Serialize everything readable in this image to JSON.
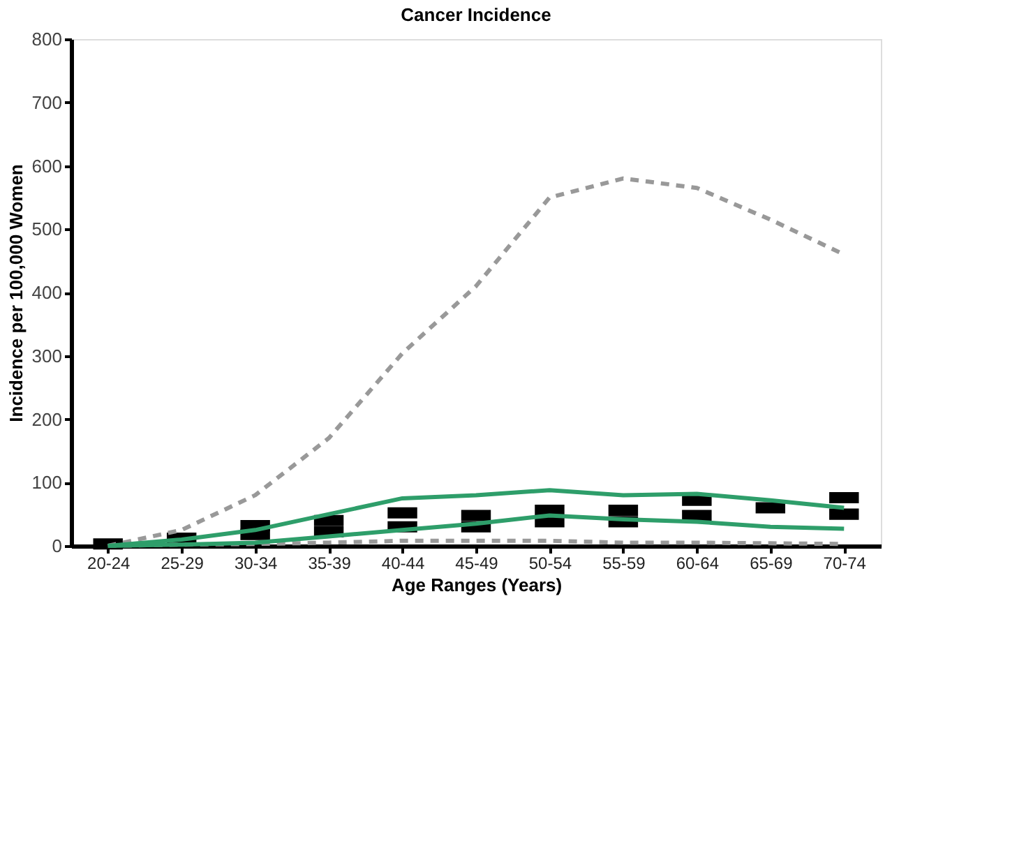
{
  "chart_data": {
    "type": "line",
    "title": "Cancer Incidence",
    "xlabel": "Age Ranges (Years)",
    "ylabel": "Incidence per 100,000 Women",
    "categories": [
      "20-24",
      "25-29",
      "30-34",
      "35-39",
      "40-44",
      "45-49",
      "50-54",
      "55-59",
      "60-64",
      "65-69",
      "70-74"
    ],
    "ylim": [
      0,
      800
    ],
    "yticks": [
      0,
      100,
      200,
      300,
      400,
      500,
      600,
      700,
      800
    ],
    "grid": false,
    "series": [
      {
        "line_style": "dashed",
        "color": "#999999",
        "values": [
          0,
          25,
          80,
          170,
          304,
          410,
          550,
          580,
          565,
          515,
          460
        ]
      },
      {
        "line_style": "dashed",
        "color": "#999999",
        "values": [
          0,
          2,
          3,
          5,
          8,
          8,
          8,
          5,
          5,
          4,
          3
        ]
      },
      {
        "line_style": "solid",
        "color": "#2e9e6a",
        "values": [
          0,
          10,
          25,
          50,
          75,
          80,
          88,
          80,
          82,
          72,
          60
        ]
      },
      {
        "line_style": "solid",
        "color": "#2e9e6a",
        "values": [
          0,
          2,
          5,
          15,
          25,
          35,
          48,
          42,
          38,
          30,
          27
        ]
      },
      {
        "type": "scatter",
        "marker": "square",
        "color": "#000000",
        "values": [
          3,
          12,
          32,
          40,
          52,
          48,
          56,
          56,
          72,
          60,
          76
        ]
      },
      {
        "type": "scatter",
        "marker": "square",
        "color": "#000000",
        "values": [
          null,
          null,
          18,
          22,
          30,
          30,
          38,
          38,
          48,
          null,
          50
        ]
      }
    ]
  }
}
